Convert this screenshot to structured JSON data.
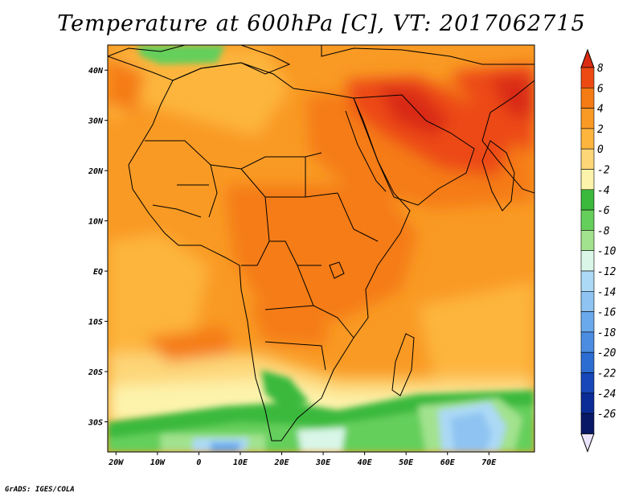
{
  "title": "Temperature at 600hPa [C], VT: 2017062715",
  "credit": "GrADS: IGES/COLA",
  "map": {
    "lon_range": [
      -22,
      81
    ],
    "lat_range": [
      -36,
      45
    ],
    "x_ticks": [
      "20W",
      "10W",
      "0",
      "10E",
      "20E",
      "30E",
      "40E",
      "50E",
      "60E",
      "70E"
    ],
    "x_tick_values": [
      -20,
      -10,
      0,
      10,
      20,
      30,
      40,
      50,
      60,
      70
    ],
    "y_ticks": [
      "40N",
      "30N",
      "20N",
      "10N",
      "EQ",
      "10S",
      "20S",
      "30S"
    ],
    "y_tick_values": [
      40,
      30,
      20,
      10,
      0,
      -10,
      -20,
      -30
    ]
  },
  "colorbar": {
    "levels": [
      "8",
      "6",
      "4",
      "2",
      "0",
      "-2",
      "-4",
      "-6",
      "-8",
      "-10",
      "-12",
      "-14",
      "-16",
      "-18",
      "-20",
      "-22",
      "-24",
      "-26"
    ],
    "colors": [
      "#d92b12",
      "#ec4a12",
      "#f57b14",
      "#f99a24",
      "#fdb53e",
      "#fdd678",
      "#fdf3ab",
      "#3bb93d",
      "#65cf5b",
      "#a2e28e",
      "#d9f6e8",
      "#acd9f5",
      "#8fc4f2",
      "#6aa9ec",
      "#4a8de1",
      "#2c6dd2",
      "#1747b8",
      "#0b2b96",
      "#081866",
      "#ebe4ff"
    ]
  }
}
